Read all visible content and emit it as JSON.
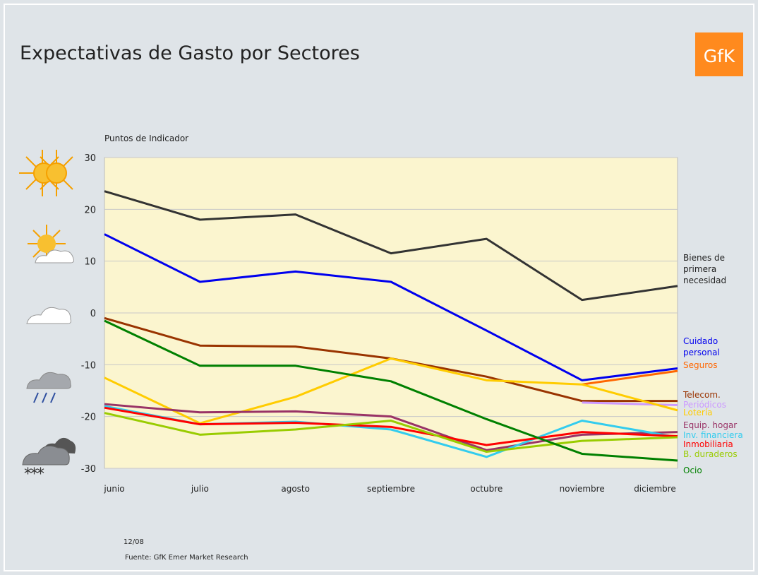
{
  "header": {
    "title": "Expectativas de Gasto por Sectores",
    "logo": "GfK"
  },
  "footer": {
    "date": "12/08",
    "source": "Fuente: GfK Emer Market Research"
  },
  "chart_data": {
    "type": "line",
    "y_label": "Puntos de Indicador",
    "categories": [
      "junio",
      "julio",
      "agosto",
      "septiembre",
      "octubre",
      "noviembre",
      "diciembre"
    ],
    "ylim": [
      -30,
      30
    ],
    "yticks": [
      -30,
      -20,
      -10,
      0,
      10,
      20,
      30
    ],
    "grid": true,
    "series": [
      {
        "name": "Bienes de primera necesidad",
        "color": "#333333",
        "values": [
          23.5,
          18,
          19,
          11.5,
          14.3,
          2.5,
          5.2
        ]
      },
      {
        "name": "Cuidado personal",
        "color": "#0000ee",
        "values": [
          15.2,
          6,
          8,
          6,
          -3.4,
          -13,
          -10.7
        ]
      },
      {
        "name": "Seguros",
        "color": "#ff6600",
        "values": [
          null,
          null,
          null,
          null,
          null,
          -13.8,
          -11.2
        ]
      },
      {
        "name": "Telecom.",
        "color": "#993300",
        "values": [
          -1,
          -6.3,
          -6.5,
          -8.8,
          -12.3,
          -17,
          -17
        ]
      },
      {
        "name": "Periódicos",
        "color": "#cc99ff",
        "values": [
          null,
          null,
          null,
          null,
          null,
          -17.3,
          -17.8
        ]
      },
      {
        "name": "Lotería",
        "color": "#ffcc00",
        "values": [
          -12.5,
          -21.3,
          -16.2,
          -8.8,
          -13,
          -13.8,
          -18.8
        ]
      },
      {
        "name": "Equip. hogar",
        "color": "#993366",
        "values": [
          -17.6,
          -19.2,
          -19,
          -20,
          -26.5,
          -23.5,
          -23
        ]
      },
      {
        "name": "Inv. financiera",
        "color": "#33ccee",
        "values": [
          -18,
          -21.5,
          -21,
          -22.5,
          -27.8,
          -20.8,
          -24
        ]
      },
      {
        "name": "Inmobiliaria",
        "color": "#ff0000",
        "values": [
          -18.3,
          -21.5,
          -21.2,
          -22,
          -25.5,
          -23,
          -23.8
        ]
      },
      {
        "name": "B. duraderos",
        "color": "#99cc00",
        "values": [
          -19.3,
          -23.5,
          -22.5,
          -20.8,
          -26.8,
          -24.7,
          -24
        ]
      },
      {
        "name": "Ocio",
        "color": "#008000",
        "values": [
          -1.5,
          -10.2,
          -10.2,
          -13.2,
          -20.5,
          -27.2,
          -28.5
        ]
      }
    ]
  }
}
